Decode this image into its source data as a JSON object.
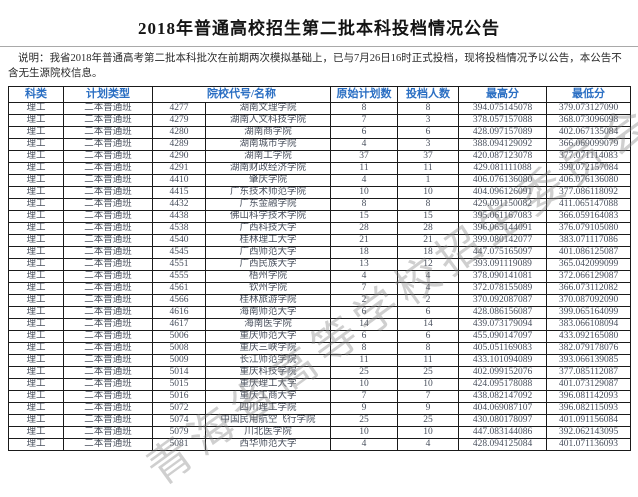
{
  "page": {
    "title": "2018年普通高校招生第二批本科投档情况公告",
    "description_line1": "说明：我省2018年普通高考第二批本科批次在前期两次模拟基础上，已与7月26日16时正式投档，现将投档情况予以公告，本公告不",
    "description_line2": "含无生源院校信息。",
    "watermark": "青海省高等学校招生委员会办公室",
    "header_color": "#2b6fc3",
    "body_text_color": "#49505e"
  },
  "table": {
    "headers": [
      "科类",
      "计划类型",
      "院校代号/名称",
      "原始计划数",
      "投档人数",
      "最高分",
      "最低分"
    ],
    "rows": [
      [
        "理工",
        "二本普通班",
        "4277",
        "湖南文理学院",
        "8",
        "8",
        "394.075145078",
        "379.073127090"
      ],
      [
        "理工",
        "二本普通班",
        "4279",
        "湖南人文科技学院",
        "7",
        "3",
        "378.057157088",
        "368.073096098"
      ],
      [
        "理工",
        "二本普通班",
        "4280",
        "湖南商学院",
        "6",
        "6",
        "428.097157089",
        "402.067135084"
      ],
      [
        "理工",
        "二本普通班",
        "4289",
        "湖南城市学院",
        "4",
        "3",
        "388.094129092",
        "366.069099079"
      ],
      [
        "理工",
        "二本普通班",
        "4290",
        "湖南工学院",
        "37",
        "37",
        "420.087123078",
        "377.071114083"
      ],
      [
        "理工",
        "二本普通班",
        "4291",
        "湖南财政经济学院",
        "11",
        "11",
        "429.081111088",
        "399.072157084"
      ],
      [
        "理工",
        "二本普通班",
        "4410",
        "肇庆学院",
        "4",
        "1",
        "406.076136080",
        "406.076136080"
      ],
      [
        "理工",
        "二本普通班",
        "4415",
        "广东技术师范学院",
        "10",
        "10",
        "404.096126091",
        "377.086118092"
      ],
      [
        "理工",
        "二本普通班",
        "4432",
        "广东金融学院",
        "8",
        "8",
        "429.091150082",
        "411.065147088"
      ],
      [
        "理工",
        "二本普通班",
        "4438",
        "佛山科学技术学院",
        "15",
        "15",
        "395.061167083",
        "366.059164083"
      ],
      [
        "理工",
        "二本普通班",
        "4538",
        "广西科技大学",
        "28",
        "28",
        "396.065144091",
        "376.079105080"
      ],
      [
        "理工",
        "二本普通班",
        "4540",
        "桂林理工大学",
        "21",
        "21",
        "399.080142077",
        "383.071117086"
      ],
      [
        "理工",
        "二本普通班",
        "4545",
        "广西师范大学",
        "18",
        "18",
        "447.075165097",
        "401.086125087"
      ],
      [
        "理工",
        "二本普通班",
        "4551",
        "广西民族大学",
        "13",
        "12",
        "393.091119089",
        "365.042099099"
      ],
      [
        "理工",
        "二本普通班",
        "4555",
        "梧州学院",
        "4",
        "4",
        "378.090141081",
        "372.066129087"
      ],
      [
        "理工",
        "二本普通班",
        "4561",
        "钦州学院",
        "7",
        "4",
        "372.078155089",
        "366.073112082"
      ],
      [
        "理工",
        "二本普通班",
        "4566",
        "桂林旅游学院",
        "2",
        "2",
        "370.092087087",
        "370.087092090"
      ],
      [
        "理工",
        "二本普通班",
        "4616",
        "海南师范大学",
        "6",
        "6",
        "428.086156087",
        "399.065164099"
      ],
      [
        "理工",
        "二本普通班",
        "4617",
        "海南医学院",
        "14",
        "14",
        "439.073179094",
        "383.066108094"
      ],
      [
        "理工",
        "二本普通班",
        "5006",
        "重庆师范大学",
        "6",
        "6",
        "455.090147097",
        "433.092165080"
      ],
      [
        "理工",
        "二本普通班",
        "5008",
        "重庆三峡学院",
        "8",
        "8",
        "405.051169083",
        "382.079178076"
      ],
      [
        "理工",
        "二本普通班",
        "5009",
        "长江师范学院",
        "11",
        "11",
        "433.101094089",
        "393.066139085"
      ],
      [
        "理工",
        "二本普通班",
        "5014",
        "重庆科技学院",
        "25",
        "25",
        "402.099152076",
        "377.085112087"
      ],
      [
        "理工",
        "二本普通班",
        "5015",
        "重庆理工大学",
        "10",
        "10",
        "424.095178088",
        "401.073129087"
      ],
      [
        "理工",
        "二本普通班",
        "5016",
        "重庆工商大学",
        "7",
        "7",
        "438.082147092",
        "396.081142093"
      ],
      [
        "理工",
        "二本普通班",
        "5072",
        "四川理工学院",
        "9",
        "9",
        "404.069087107",
        "396.082115093"
      ],
      [
        "理工",
        "二本普通班",
        "5074",
        "中国民用航空飞行学院",
        "25",
        "25",
        "430.080178097",
        "401.091156084"
      ],
      [
        "理工",
        "二本普通班",
        "5079",
        "川北医学院",
        "10",
        "10",
        "447.083144086",
        "392.062143095"
      ],
      [
        "理工",
        "二本普通班",
        "5081",
        "西华师范大学",
        "4",
        "4",
        "428.094125084",
        "401.071136093"
      ]
    ],
    "cell_names": [
      "category-cell",
      "plan-type-cell",
      "college-code-cell",
      "college-name-cell",
      "plan-count-cell",
      "filed-count-cell",
      "max-score-cell",
      "min-score-cell"
    ]
  }
}
